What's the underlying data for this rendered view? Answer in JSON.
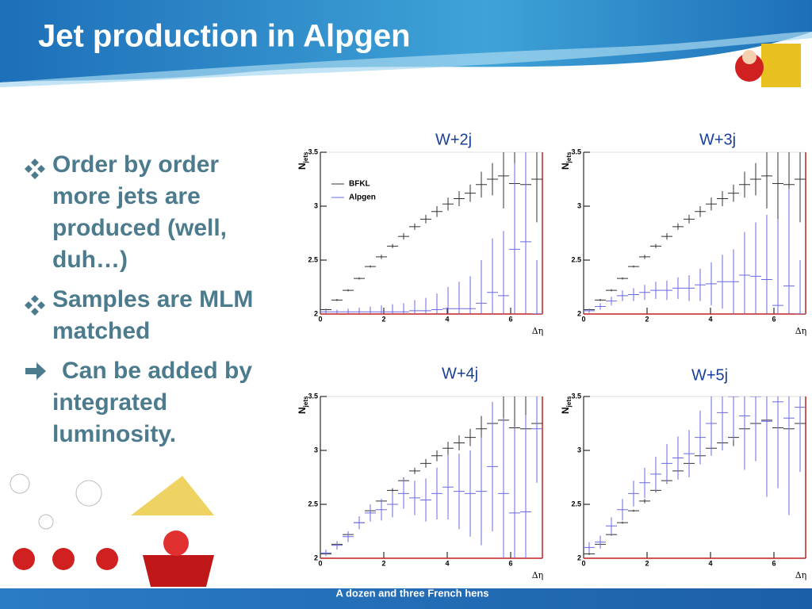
{
  "slide": {
    "title": "Jet production in Alpgen",
    "bullets": [
      "Order by order more jets are produced (well, duh…)",
      "Samples are MLM matched",
      "Can be added by integrated luminosity."
    ],
    "footer": "A dozen and three French hens"
  },
  "chart_data": [
    {
      "type": "errorbar",
      "title": "W+2j",
      "xlabel": "Δη",
      "ylabel": "N",
      "ylabel_sub": "jets",
      "legend": true,
      "xlim": [
        0,
        7
      ],
      "xticks": [
        0,
        2,
        4,
        6
      ],
      "ylim": [
        2,
        3.5
      ],
      "yticks": [
        2,
        2.5,
        3,
        3.5
      ],
      "x": [
        0.175,
        0.525,
        0.875,
        1.225,
        1.575,
        1.925,
        2.275,
        2.625,
        2.975,
        3.325,
        3.675,
        4.025,
        4.375,
        4.725,
        5.075,
        5.425,
        5.775,
        6.125,
        6.475,
        6.825
      ],
      "series": [
        {
          "name": "BFKL",
          "color": "#333333",
          "values": [
            2.04,
            2.13,
            2.22,
            2.33,
            2.44,
            2.53,
            2.63,
            2.72,
            2.81,
            2.88,
            2.95,
            3.02,
            3.07,
            3.12,
            3.2,
            3.25,
            3.28,
            3.21,
            3.2,
            3.25
          ],
          "errors": [
            0.01,
            0.01,
            0.01,
            0.01,
            0.01,
            0.02,
            0.02,
            0.03,
            0.03,
            0.04,
            0.05,
            0.06,
            0.07,
            0.08,
            0.12,
            0.15,
            0.3,
            0.5,
            0.6,
            0.4
          ]
        },
        {
          "name": "Alpgen",
          "color": "#6a6ae0",
          "values": [
            2.02,
            2.02,
            2.02,
            2.02,
            2.02,
            2.02,
            2.02,
            2.02,
            2.03,
            2.03,
            2.04,
            2.05,
            2.05,
            2.05,
            2.1,
            2.2,
            2.17,
            2.6,
            2.67,
            2.0
          ],
          "errors": [
            0.02,
            0.02,
            0.03,
            0.04,
            0.05,
            0.06,
            0.07,
            0.08,
            0.1,
            0.12,
            0.15,
            0.2,
            0.25,
            0.3,
            0.4,
            0.5,
            0.6,
            0.8,
            0.9,
            0.5
          ]
        }
      ]
    },
    {
      "type": "errorbar",
      "title": "W+3j",
      "xlabel": "Δη",
      "ylabel": "N",
      "ylabel_sub": "jets",
      "legend": false,
      "xlim": [
        0,
        7
      ],
      "xticks": [
        0,
        2,
        4,
        6
      ],
      "ylim": [
        2,
        3.5
      ],
      "yticks": [
        2,
        2.5,
        3,
        3.5
      ],
      "x": [
        0.175,
        0.525,
        0.875,
        1.225,
        1.575,
        1.925,
        2.275,
        2.625,
        2.975,
        3.325,
        3.675,
        4.025,
        4.375,
        4.725,
        5.075,
        5.425,
        5.775,
        6.125,
        6.475,
        6.825
      ],
      "series": [
        {
          "name": "BFKL",
          "color": "#333333",
          "values": [
            2.04,
            2.13,
            2.22,
            2.33,
            2.44,
            2.53,
            2.63,
            2.72,
            2.81,
            2.88,
            2.95,
            3.02,
            3.07,
            3.12,
            3.2,
            3.25,
            3.28,
            3.21,
            3.2,
            3.25
          ],
          "errors": [
            0.01,
            0.01,
            0.01,
            0.01,
            0.01,
            0.02,
            0.02,
            0.03,
            0.03,
            0.04,
            0.05,
            0.06,
            0.07,
            0.08,
            0.12,
            0.15,
            0.3,
            0.5,
            0.6,
            0.4
          ]
        },
        {
          "name": "Alpgen",
          "color": "#6a6ae0",
          "values": [
            2.03,
            2.07,
            2.12,
            2.17,
            2.18,
            2.2,
            2.22,
            2.22,
            2.24,
            2.24,
            2.27,
            2.28,
            2.3,
            2.3,
            2.36,
            2.35,
            2.32,
            2.08,
            2.26,
            2.0
          ],
          "errors": [
            0.02,
            0.03,
            0.04,
            0.05,
            0.06,
            0.07,
            0.08,
            0.09,
            0.1,
            0.12,
            0.15,
            0.2,
            0.25,
            0.3,
            0.4,
            0.5,
            0.6,
            0.8,
            0.9,
            0.5
          ]
        }
      ]
    },
    {
      "type": "errorbar",
      "title": "W+4j",
      "xlabel": "Δη",
      "ylabel": "N",
      "ylabel_sub": "jets",
      "legend": false,
      "xlim": [
        0,
        7
      ],
      "xticks": [
        0,
        2,
        4,
        6
      ],
      "ylim": [
        2,
        3.5
      ],
      "yticks": [
        2,
        2.5,
        3,
        3.5
      ],
      "x": [
        0.175,
        0.525,
        0.875,
        1.225,
        1.575,
        1.925,
        2.275,
        2.625,
        2.975,
        3.325,
        3.675,
        4.025,
        4.375,
        4.725,
        5.075,
        5.425,
        5.775,
        6.125,
        6.475,
        6.825
      ],
      "series": [
        {
          "name": "BFKL",
          "color": "#333333",
          "values": [
            2.04,
            2.13,
            2.22,
            2.33,
            2.44,
            2.53,
            2.63,
            2.72,
            2.81,
            2.88,
            2.95,
            3.02,
            3.07,
            3.12,
            3.2,
            3.25,
            3.28,
            3.21,
            3.2,
            3.25
          ],
          "errors": [
            0.01,
            0.01,
            0.01,
            0.01,
            0.01,
            0.02,
            0.02,
            0.03,
            0.03,
            0.04,
            0.05,
            0.06,
            0.07,
            0.08,
            0.12,
            0.15,
            0.3,
            0.5,
            0.6,
            0.4
          ]
        },
        {
          "name": "Alpgen",
          "color": "#6a6ae0",
          "values": [
            2.05,
            2.12,
            2.2,
            2.33,
            2.42,
            2.45,
            2.5,
            2.6,
            2.56,
            2.54,
            2.6,
            2.66,
            2.62,
            2.6,
            2.62,
            2.85,
            2.6,
            2.42,
            2.43,
            3.2
          ],
          "errors": [
            0.03,
            0.04,
            0.05,
            0.06,
            0.08,
            0.1,
            0.12,
            0.14,
            0.16,
            0.2,
            0.24,
            0.3,
            0.35,
            0.4,
            0.5,
            0.6,
            0.7,
            0.8,
            0.9,
            0.5
          ]
        }
      ]
    },
    {
      "type": "errorbar",
      "title": "W+5j",
      "xlabel": "Δη",
      "ylabel": "N",
      "ylabel_sub": "jets",
      "legend": false,
      "xlim": [
        0,
        7
      ],
      "xticks": [
        0,
        2,
        4,
        6
      ],
      "ylim": [
        2,
        3.5
      ],
      "yticks": [
        2,
        2.5,
        3,
        3.5
      ],
      "x": [
        0.175,
        0.525,
        0.875,
        1.225,
        1.575,
        1.925,
        2.275,
        2.625,
        2.975,
        3.325,
        3.675,
        4.025,
        4.375,
        4.725,
        5.075,
        5.425,
        5.775,
        6.125,
        6.475,
        6.825
      ],
      "series": [
        {
          "name": "BFKL",
          "color": "#333333",
          "values": [
            2.04,
            2.13,
            2.22,
            2.33,
            2.44,
            2.53,
            2.63,
            2.72,
            2.81,
            2.88,
            2.95,
            3.02,
            3.07,
            3.12,
            3.2,
            3.25,
            3.28,
            3.21,
            3.2,
            3.25
          ],
          "errors": [
            0.01,
            0.01,
            0.01,
            0.01,
            0.01,
            0.02,
            0.02,
            0.03,
            0.03,
            0.04,
            0.05,
            0.06,
            0.07,
            0.08,
            0.12,
            0.15,
            0.3,
            0.5,
            0.6,
            0.4
          ]
        },
        {
          "name": "Alpgen",
          "color": "#6a6ae0",
          "values": [
            2.1,
            2.15,
            2.3,
            2.45,
            2.6,
            2.7,
            2.78,
            2.88,
            2.93,
            2.97,
            3.12,
            3.25,
            3.35,
            3.5,
            3.32,
            3.5,
            3.27,
            3.45,
            3.3,
            3.4
          ],
          "errors": [
            0.05,
            0.06,
            0.08,
            0.1,
            0.12,
            0.14,
            0.16,
            0.18,
            0.2,
            0.22,
            0.25,
            0.3,
            0.35,
            0.4,
            0.5,
            0.6,
            0.7,
            0.8,
            0.9,
            0.6
          ]
        }
      ]
    }
  ]
}
